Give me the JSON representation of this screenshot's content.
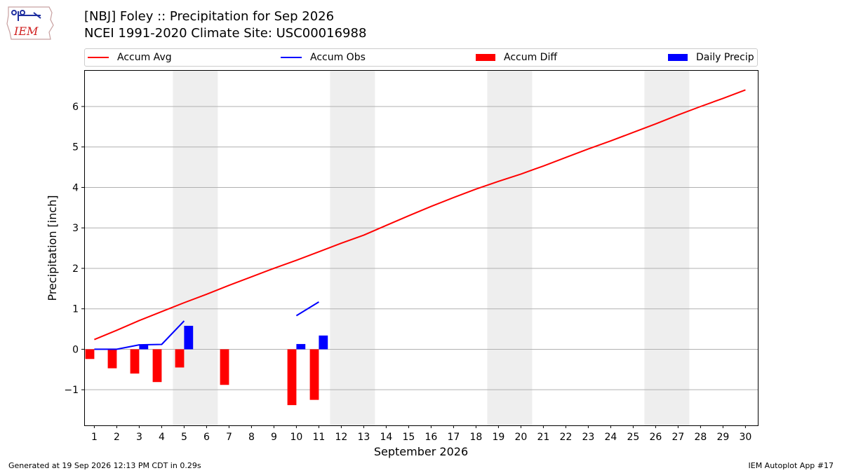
{
  "header": {
    "title_line1": "[NBJ] Foley :: Precipitation for Sep 2026",
    "title_line2": "NCEI 1991-2020 Climate Site: USC00016988",
    "logo_text": "IEM"
  },
  "footer": {
    "left": "Generated at 19 Sep 2026 12:13 PM CDT in 0.29s",
    "right": "IEM Autoplot App #17"
  },
  "legend": [
    {
      "label": "Accum Avg",
      "kind": "line",
      "color": "#ff0000"
    },
    {
      "label": "Accum Obs",
      "kind": "line",
      "color": "#0000ff"
    },
    {
      "label": "Accum Diff",
      "kind": "box",
      "color": "#ff0000"
    },
    {
      "label": "Daily Precip",
      "kind": "box",
      "color": "#0000ff"
    }
  ],
  "chart_data": {
    "type": "bar",
    "xlabel": "September 2026",
    "ylabel": "Precipitation [inch]",
    "x_ticks": [
      "1",
      "2",
      "3",
      "4",
      "5",
      "6",
      "7",
      "8",
      "9",
      "10",
      "11",
      "12",
      "13",
      "14",
      "15",
      "16",
      "17",
      "18",
      "19",
      "20",
      "21",
      "22",
      "23",
      "24",
      "25",
      "26",
      "27",
      "28",
      "29",
      "30"
    ],
    "xlim": [
      0.55,
      30.55
    ],
    "ylim": [
      -1.88,
      6.9
    ],
    "y_ticks": [
      -1,
      0,
      1,
      2,
      3,
      4,
      5,
      6
    ],
    "y_tick_labels": [
      "−1",
      "0",
      "1",
      "2",
      "3",
      "4",
      "5",
      "6"
    ],
    "grid": "y",
    "weekend_shading": [
      [
        4.5,
        6.5
      ],
      [
        11.5,
        13.5
      ],
      [
        18.5,
        20.5
      ],
      [
        25.5,
        27.5
      ]
    ],
    "series": [
      {
        "name": "Accum Avg",
        "kind": "line",
        "color": "#ff0000",
        "x": [
          1,
          2,
          3,
          4,
          5,
          6,
          7,
          8,
          9,
          10,
          11,
          12,
          13,
          14,
          15,
          16,
          17,
          18,
          19,
          20,
          21,
          22,
          23,
          24,
          25,
          26,
          27,
          28,
          29,
          30
        ],
        "values": [
          0.24,
          0.47,
          0.71,
          0.93,
          1.15,
          1.36,
          1.58,
          1.79,
          2.0,
          2.2,
          2.41,
          2.62,
          2.82,
          3.06,
          3.3,
          3.53,
          3.75,
          3.96,
          4.15,
          4.33,
          4.53,
          4.74,
          4.95,
          5.15,
          5.36,
          5.57,
          5.79,
          6.0,
          6.2,
          6.41
        ]
      },
      {
        "name": "Accum Obs",
        "kind": "line",
        "color": "#0000ff",
        "x": [
          1,
          2,
          3,
          4,
          5,
          null,
          10,
          11
        ],
        "values": [
          0.0,
          0.0,
          0.11,
          0.12,
          0.7,
          null,
          0.83,
          1.17
        ]
      },
      {
        "name": "Accum Diff",
        "kind": "bar",
        "color": "#ff0000",
        "offset": -0.2,
        "x": [
          1,
          2,
          3,
          4,
          5,
          7,
          10,
          11
        ],
        "values": [
          -0.24,
          -0.47,
          -0.6,
          -0.81,
          -0.45,
          -0.88,
          -1.38,
          -1.25
        ]
      },
      {
        "name": "Daily Precip",
        "kind": "bar",
        "color": "#0000ff",
        "offset": 0.2,
        "x": [
          3,
          5,
          10,
          11
        ],
        "values": [
          0.11,
          0.58,
          0.13,
          0.34
        ]
      }
    ]
  }
}
